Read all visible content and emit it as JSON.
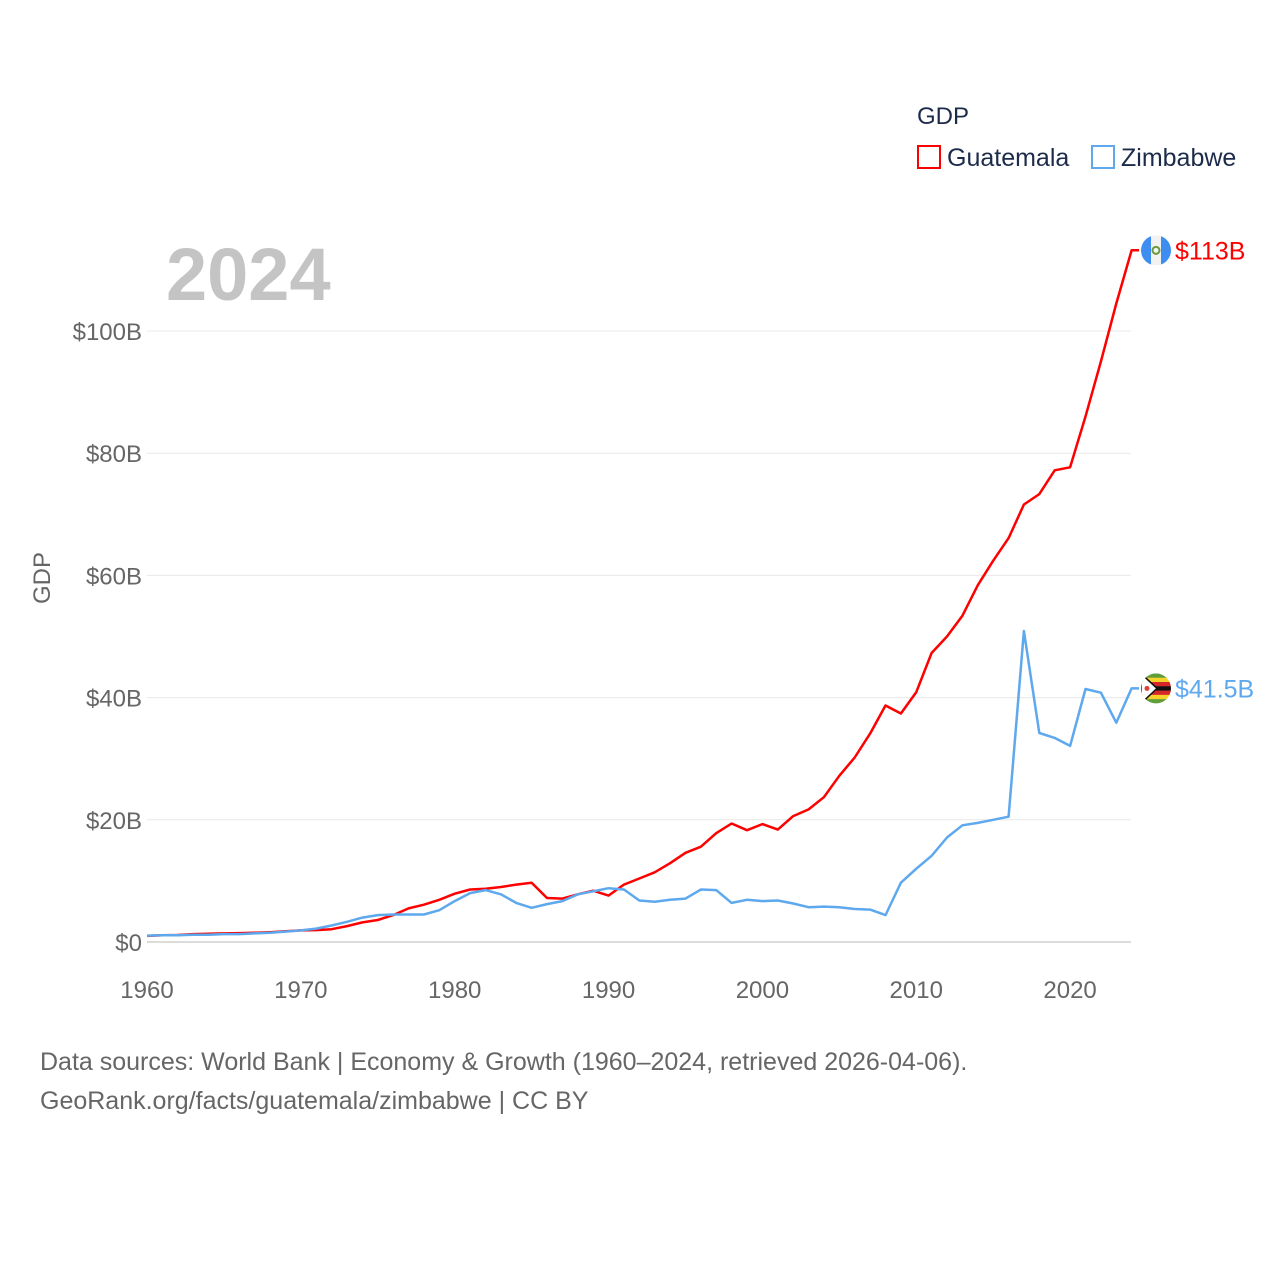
{
  "chart_data": {
    "type": "line",
    "title": "2024",
    "xlabel": "",
    "ylabel": "GDP",
    "xlim": [
      1960,
      2024
    ],
    "ylim": [
      0,
      113
    ],
    "x_ticks": [
      1960,
      1970,
      1980,
      1990,
      2000,
      2010,
      2020
    ],
    "y_ticks": [
      0,
      20,
      40,
      60,
      80,
      100
    ],
    "y_tick_labels": [
      "$0",
      "$20B",
      "$40B",
      "$60B",
      "$80B",
      "$100B"
    ],
    "grid": true,
    "legend": {
      "title": "GDP",
      "placement": "top-right"
    },
    "x_start": 1960,
    "series": [
      {
        "name": "Guatemala",
        "color": "#ff0000",
        "end_label": "$113B",
        "flag": "guatemala-flag",
        "values": [
          1.0,
          1.1,
          1.15,
          1.3,
          1.35,
          1.4,
          1.45,
          1.5,
          1.6,
          1.75,
          1.9,
          1.95,
          2.1,
          2.6,
          3.2,
          3.6,
          4.4,
          5.5,
          6.1,
          6.9,
          7.9,
          8.6,
          8.7,
          9.0,
          9.4,
          9.7,
          7.2,
          7.1,
          7.8,
          8.4,
          7.6,
          9.4,
          10.4,
          11.4,
          12.9,
          14.6,
          15.6,
          17.8,
          19.4,
          18.3,
          19.3,
          18.4,
          20.6,
          21.7,
          23.7,
          27.2,
          30.2,
          34.1,
          38.7,
          37.4,
          40.9,
          47.3,
          50.0,
          53.4,
          58.4,
          62.4,
          66.1,
          71.6,
          73.3,
          77.2,
          77.7,
          86.0,
          95.0,
          104.5,
          113.2
        ]
      },
      {
        "name": "Zimbabwe",
        "color": "#5ea8ee",
        "end_label": "$41.5B",
        "flag": "zimbabwe-flag",
        "values": [
          1.05,
          1.1,
          1.1,
          1.2,
          1.2,
          1.3,
          1.3,
          1.4,
          1.5,
          1.7,
          1.9,
          2.2,
          2.7,
          3.3,
          4.0,
          4.4,
          4.5,
          4.5,
          4.5,
          5.2,
          6.7,
          8.0,
          8.5,
          7.8,
          6.4,
          5.6,
          6.2,
          6.7,
          7.8,
          8.3,
          8.8,
          8.6,
          6.8,
          6.6,
          6.9,
          7.1,
          8.6,
          8.5,
          6.4,
          6.9,
          6.7,
          6.8,
          6.3,
          5.7,
          5.8,
          5.7,
          5.4,
          5.3,
          4.4,
          9.7,
          12.0,
          14.1,
          17.1,
          19.1,
          19.5,
          20.0,
          20.5,
          50.9,
          34.2,
          33.4,
          32.1,
          41.4,
          40.8,
          35.9,
          41.5
        ]
      }
    ]
  },
  "footer": {
    "line1": "Data sources: World Bank | Economy & Growth (1960–2024, retrieved 2026-04-06).",
    "line2": "GeoRank.org/facts/guatemala/zimbabwe | CC BY"
  }
}
